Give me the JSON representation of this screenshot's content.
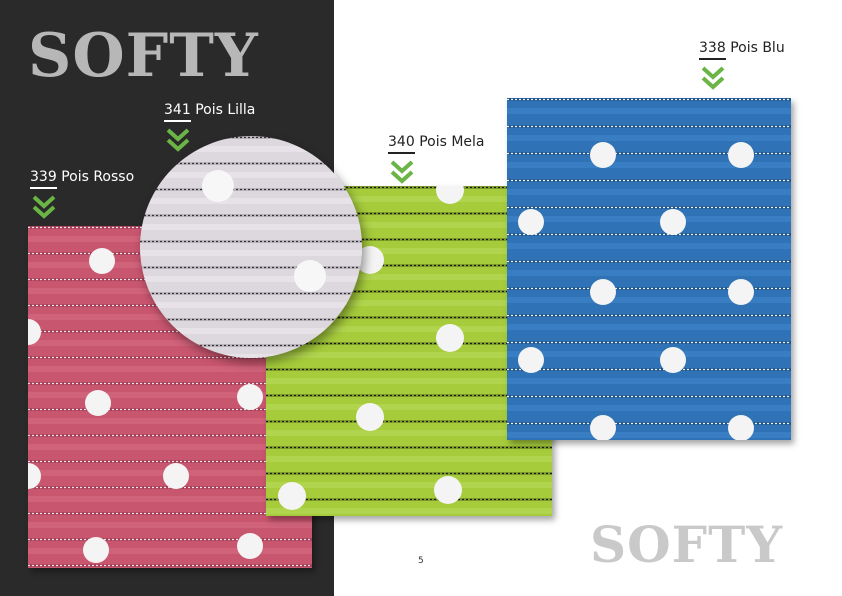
{
  "brand": {
    "top_title": "SOFTY",
    "bottom_title": "SOFTY"
  },
  "colors": {
    "dark_panel": "#2b2a2a",
    "chevron": "#6ab545",
    "rosso": "#c9566f",
    "lilla": "#dcd8de",
    "mela": "#a6cc3c",
    "blu": "#2f73b6",
    "dot": "#f4f4f4"
  },
  "products": [
    {
      "code": "339",
      "name": "Pois Rosso",
      "color": "rosso"
    },
    {
      "code": "341",
      "name": "Pois Lilla",
      "color": "lilla"
    },
    {
      "code": "340",
      "name": "Pois Mela",
      "color": "mela"
    },
    {
      "code": "338",
      "name": "Pois Blu",
      "color": "blu"
    }
  ],
  "icons": {
    "marker": "chevron-double-down-icon"
  },
  "page_number": "5"
}
